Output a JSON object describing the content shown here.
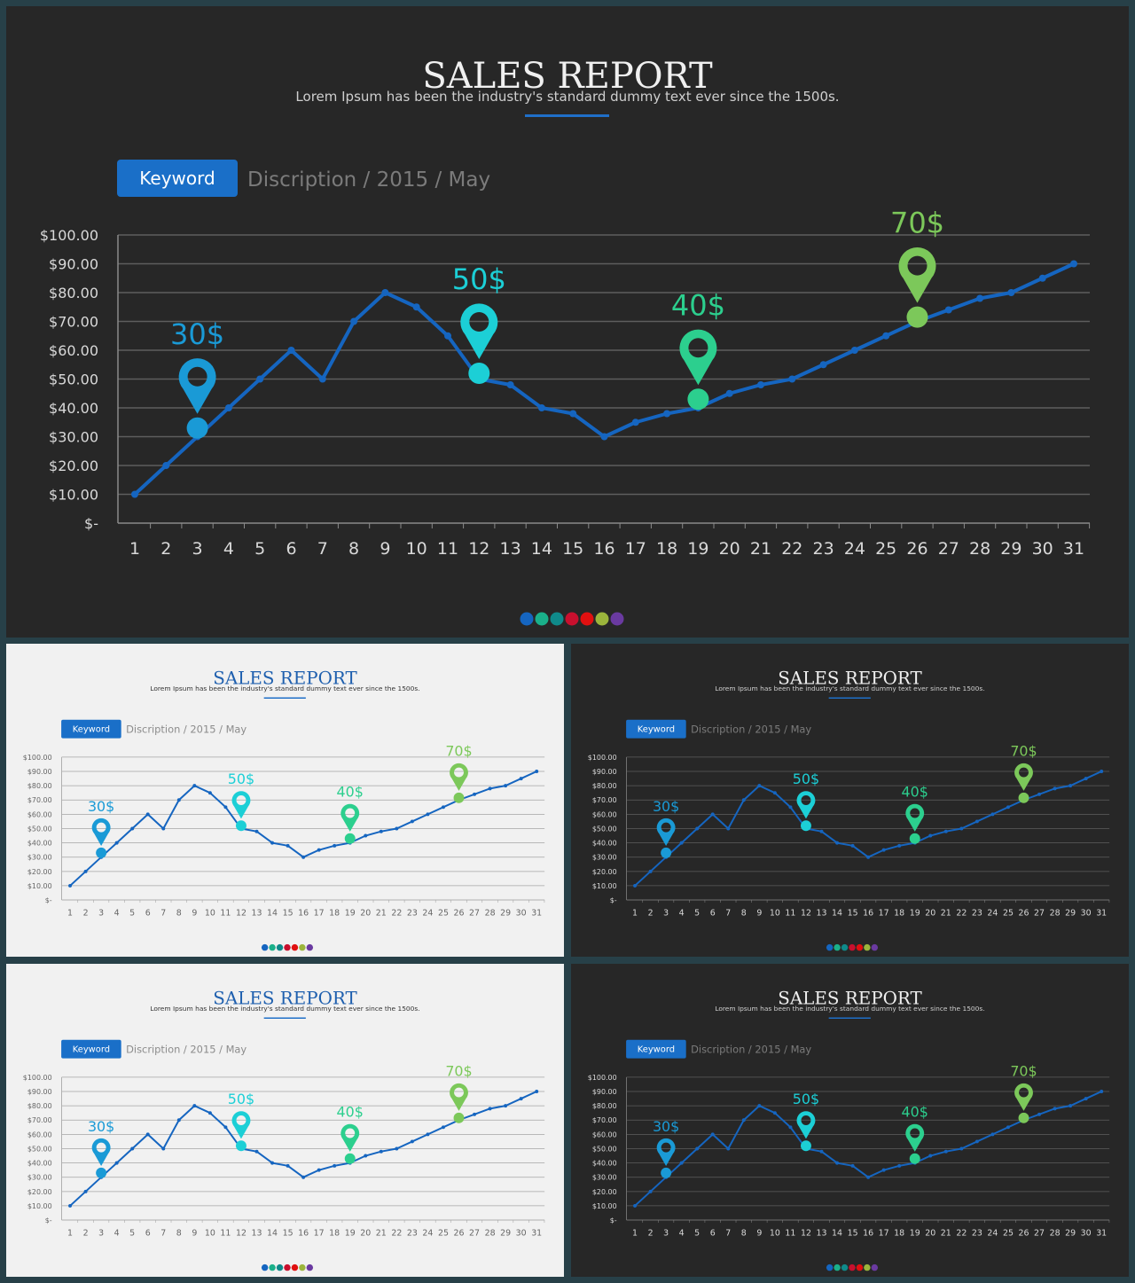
{
  "title": "SALES REPORT",
  "subtitle": "Lorem Ipsum has been the industry's standard dummy text ever since the 1500s.",
  "keyword_button": "Keyword",
  "description": "Discription / 2015 / May",
  "colors": {
    "line": "#1565c0",
    "accent_bar": "#1f6fc8",
    "keyword_bg": "#1a6fc8",
    "dark_bg": "#272727",
    "light_bg": "#f1f1f1",
    "frame": "#274048"
  },
  "dots": [
    "#1565c0",
    "#1ab08a",
    "#0f8a8a",
    "#c8102e",
    "#e01010",
    "#9bb53c",
    "#6a3aa0"
  ],
  "slides": [
    {
      "theme": "dark"
    },
    {
      "theme": "light"
    },
    {
      "theme": "dark"
    },
    {
      "theme": "light"
    },
    {
      "theme": "dark"
    }
  ],
  "chart_data": {
    "type": "line",
    "x": [
      1,
      2,
      3,
      4,
      5,
      6,
      7,
      8,
      9,
      10,
      11,
      12,
      13,
      14,
      15,
      16,
      17,
      18,
      19,
      20,
      21,
      22,
      23,
      24,
      25,
      26,
      27,
      28,
      29,
      30,
      31
    ],
    "series": [
      {
        "values": [
          10,
          20,
          30,
          40,
          50,
          60,
          50,
          70,
          80,
          75,
          65,
          50,
          48,
          40,
          38,
          30,
          35,
          38,
          40,
          45,
          48,
          50,
          55,
          60,
          65,
          70,
          74,
          78,
          80,
          85,
          90
        ]
      }
    ],
    "y_tick_labels": [
      "$-",
      "$10.00",
      "$20.00",
      "$30.00",
      "$40.00",
      "$50.00",
      "$60.00",
      "$70.00",
      "$80.00",
      "$90.00",
      "$100.00"
    ],
    "ylim": [
      0,
      100
    ],
    "grid": true,
    "markers": [
      {
        "x": 3,
        "y": 33,
        "label": "30$",
        "color": "#1a9ad6"
      },
      {
        "x": 12,
        "y": 52,
        "label": "50$",
        "color": "#1ccfd6"
      },
      {
        "x": 19,
        "y": 43,
        "label": "40$",
        "color": "#2ccf8e"
      },
      {
        "x": 26,
        "y": 71.5,
        "label": "70$",
        "color": "#7cc85a"
      }
    ]
  }
}
